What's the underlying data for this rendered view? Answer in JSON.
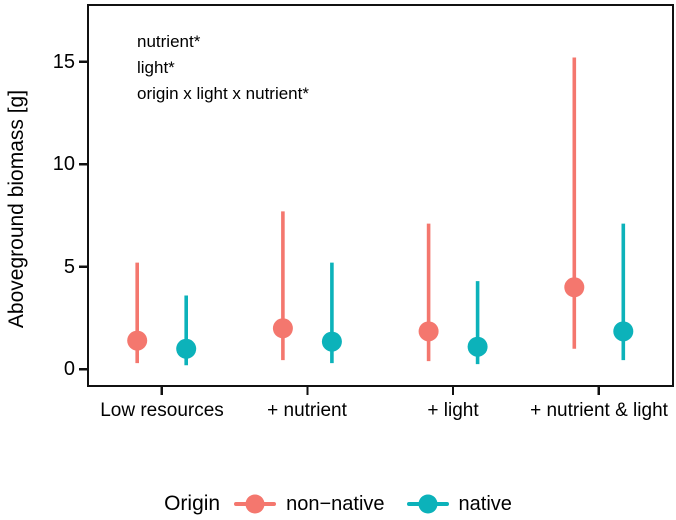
{
  "figure": {
    "background": "#ffffff",
    "text_color": "#000000",
    "border_color": "#111111"
  },
  "annotations": {
    "lines": [
      "nutrient*",
      "light*",
      "origin x light x nutrient*"
    ]
  },
  "axes": {
    "y": {
      "title": "Aboveground biomass [g]",
      "ticks": [
        "0",
        "5",
        "10",
        "15"
      ],
      "tick_values": [
        0,
        5,
        10,
        15
      ]
    },
    "x": {
      "ticks": [
        "Low resources",
        "+ nutrient",
        "+ light",
        "+ nutrient & light"
      ]
    }
  },
  "legend": {
    "title": "Origin",
    "items": [
      {
        "label": "non−native",
        "color": "#F4776E"
      },
      {
        "label": "native",
        "color": "#0CB2BA"
      }
    ]
  },
  "chart_data": {
    "type": "scatter",
    "subtype": "pointrange",
    "title": "",
    "xlabel": "",
    "ylabel": "Aboveground biomass [g]",
    "categories": [
      "Low resources",
      "+ nutrient",
      "+ light",
      "+ nutrient & light"
    ],
    "series": [
      {
        "name": "non-native",
        "color": "#F4776E",
        "means": [
          1.4,
          2.0,
          1.85,
          4.0
        ],
        "lower": [
          0.3,
          0.45,
          0.4,
          1.0
        ],
        "upper": [
          5.2,
          7.7,
          7.1,
          15.2
        ]
      },
      {
        "name": "native",
        "color": "#0CB2BA",
        "means": [
          1.0,
          1.35,
          1.1,
          1.85
        ],
        "lower": [
          0.2,
          0.3,
          0.25,
          0.45
        ],
        "upper": [
          3.6,
          5.2,
          4.3,
          7.1
        ]
      }
    ],
    "ylim": [
      -0.9,
      17.8
    ],
    "yticks": [
      0,
      5,
      10,
      15
    ],
    "grid": false,
    "legend_position": "bottom",
    "annotations": [
      "nutrient*",
      "light*",
      "origin x light x nutrient*"
    ]
  }
}
